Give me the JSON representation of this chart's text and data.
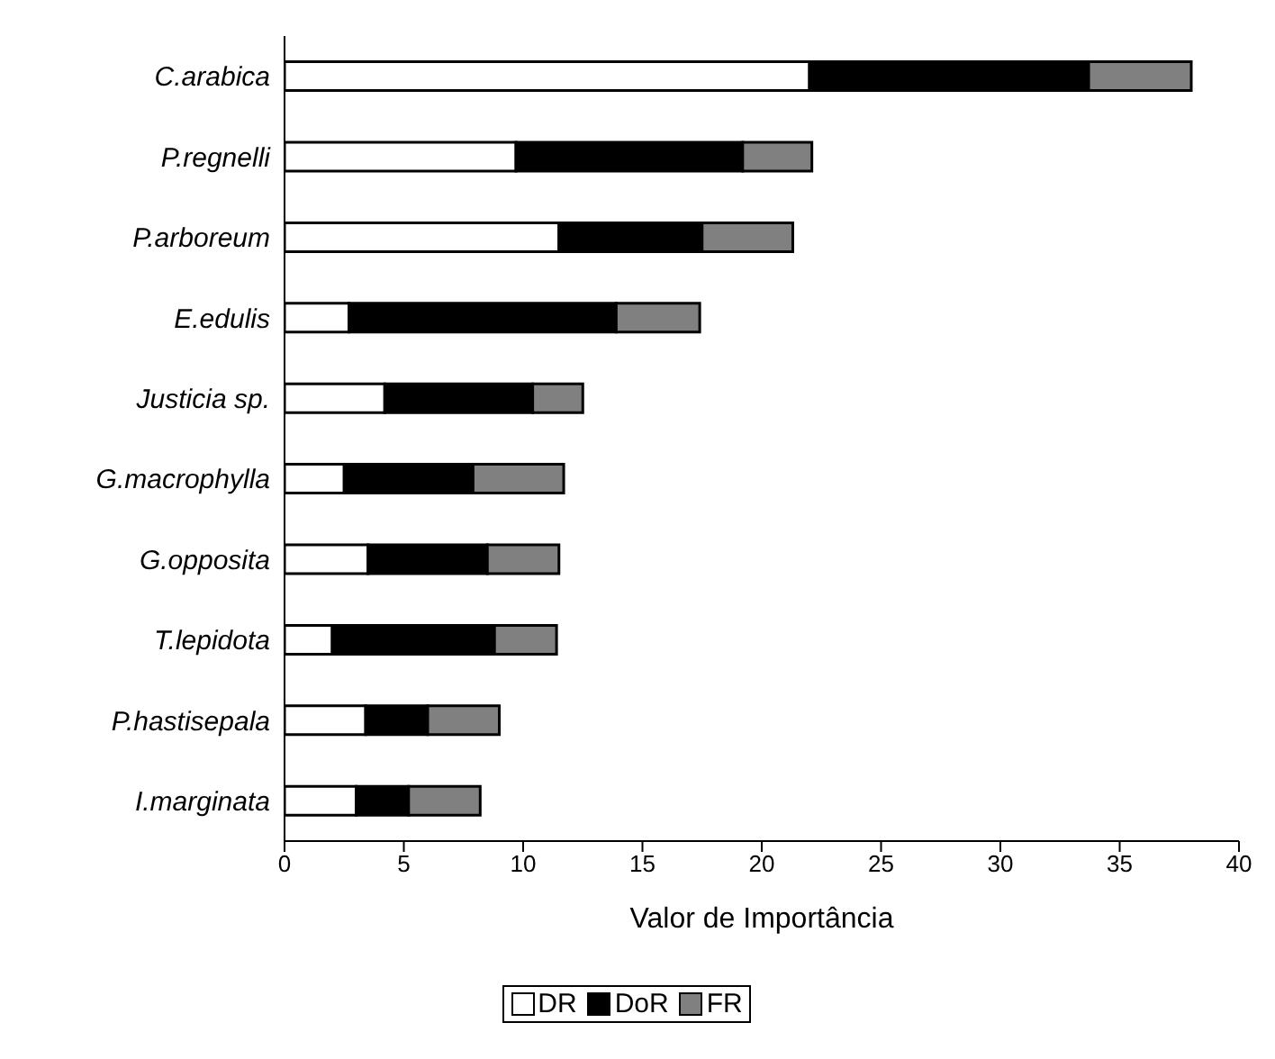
{
  "chart_data": {
    "type": "bar",
    "orientation": "horizontal",
    "stacked": true,
    "xlabel": "Valor de Importância",
    "categories": [
      "C.arabica",
      "P.regnelli",
      "P.arboreum",
      "E.edulis",
      "Justicia sp.",
      "G.macrophylla",
      "G.opposita",
      "T.lepidota",
      "P.hastisepala",
      "I.marginata"
    ],
    "series": [
      {
        "name": "DR",
        "color": "#ffffff",
        "values": [
          22.0,
          9.7,
          11.5,
          2.7,
          4.2,
          2.5,
          3.5,
          2.0,
          3.4,
          3.0
        ]
      },
      {
        "name": "DoR",
        "color": "#000000",
        "values": [
          11.7,
          9.5,
          6.0,
          11.2,
          6.2,
          5.4,
          5.0,
          6.8,
          2.6,
          2.2
        ]
      },
      {
        "name": "FR",
        "color": "#808080",
        "values": [
          4.3,
          2.9,
          3.8,
          3.5,
          2.1,
          3.8,
          3.0,
          2.6,
          3.0,
          3.0
        ]
      }
    ],
    "xlim": [
      0,
      40
    ],
    "xticks": [
      0,
      5,
      10,
      15,
      20,
      25,
      30,
      35,
      40
    ],
    "grid": false,
    "legend": "bottom"
  }
}
